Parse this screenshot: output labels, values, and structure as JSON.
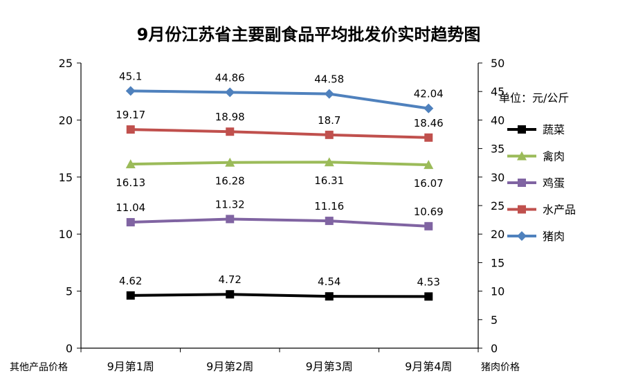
{
  "chart_data": {
    "type": "line",
    "title": "9月份江苏省主要副食品平均批发价实时趋势图",
    "unit_label": "单位：元/公斤",
    "left_axis_label": "其他产品价格",
    "right_axis_label": "猪肉价格",
    "categories": [
      "9月第1周",
      "9月第2周",
      "9月第3周",
      "9月第4周"
    ],
    "left_ylim": [
      0,
      25
    ],
    "left_ticks": [
      "0",
      "5",
      "10",
      "15",
      "20",
      "25"
    ],
    "right_ylim": [
      0,
      50
    ],
    "right_ticks": [
      "0",
      "5",
      "10",
      "15",
      "20",
      "25",
      "30",
      "35",
      "40",
      "45",
      "50"
    ],
    "series": [
      {
        "name": "蔬菜",
        "axis": "left",
        "color": "#000000",
        "marker": "square",
        "values": [
          4.62,
          4.72,
          4.54,
          4.53
        ],
        "labels": [
          "4.62",
          "4.72",
          "4.54",
          "4.53"
        ],
        "label_pos": "above"
      },
      {
        "name": "禽肉",
        "axis": "left",
        "color": "#9BBB59",
        "marker": "triangle",
        "values": [
          16.13,
          16.28,
          16.31,
          16.07
        ],
        "labels": [
          "16.13",
          "16.28",
          "16.31",
          "16.07"
        ],
        "label_pos": "below"
      },
      {
        "name": "鸡蛋",
        "axis": "left",
        "color": "#8064A2",
        "marker": "square",
        "values": [
          11.04,
          11.32,
          11.16,
          10.69
        ],
        "labels": [
          "11.04",
          "11.32",
          "11.16",
          "10.69"
        ],
        "label_pos": "above"
      },
      {
        "name": "水产品",
        "axis": "left",
        "color": "#C0504D",
        "marker": "square",
        "values": [
          19.17,
          18.98,
          18.7,
          18.46
        ],
        "labels": [
          "19.17",
          "18.98",
          "18.7",
          "18.46"
        ],
        "label_pos": "above"
      },
      {
        "name": "猪肉",
        "axis": "right",
        "color": "#4F81BD",
        "marker": "diamond",
        "values": [
          45.1,
          44.86,
          44.58,
          42.04
        ],
        "labels": [
          "45.1",
          "44.86",
          "44.58",
          "42.04"
        ],
        "label_pos": "above"
      }
    ],
    "legend_position": "right",
    "grid": false
  }
}
